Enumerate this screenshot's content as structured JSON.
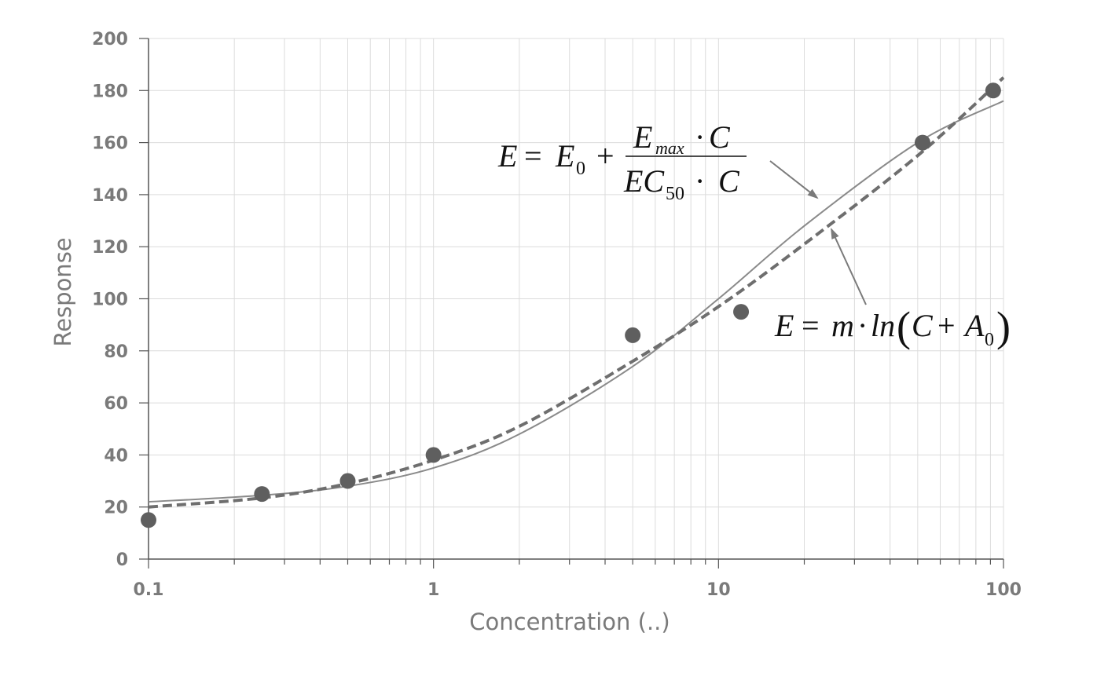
{
  "chart_data": {
    "type": "scatter",
    "title": "",
    "xlabel": "Concentration (..)",
    "ylabel": "Response",
    "xscale": "log",
    "xlim": [
      0.1,
      100
    ],
    "ylim": [
      0,
      200
    ],
    "grid": true,
    "x_ticks": [
      "0.1",
      "1",
      "10",
      "100"
    ],
    "y_ticks": [
      "0",
      "20",
      "40",
      "60",
      "80",
      "100",
      "120",
      "140",
      "160",
      "180",
      "200"
    ],
    "points": {
      "x": [
        0.1,
        0.25,
        0.5,
        1,
        5,
        12,
        52,
        92
      ],
      "y": [
        15,
        25,
        30,
        40,
        86,
        95,
        160,
        180
      ]
    },
    "curves": [
      {
        "style": "solid",
        "x": [
          0.1,
          0.25,
          0.5,
          1,
          2,
          5,
          10,
          20,
          50,
          100
        ],
        "y": [
          22,
          24.5,
          28,
          35,
          48,
          74,
          100,
          128,
          160,
          176
        ]
      },
      {
        "style": "dashed",
        "x": [
          0.1,
          0.25,
          0.5,
          1,
          2,
          5,
          10,
          20,
          50,
          100
        ],
        "y": [
          20,
          23.5,
          29,
          38,
          51,
          76,
          97,
          121,
          155,
          185
        ]
      }
    ],
    "annotations": {
      "emax_equation": {
        "E1": "E",
        "eq1": "=",
        "E0": "E",
        "sub0": "0",
        "plus": "+",
        "num_E": "E",
        "num_sub": "max",
        "num_dot": "·",
        "num_C": "C",
        "den_EC": "EC",
        "den_sub": "50",
        "den_dot": "·",
        "den_C": "C"
      },
      "log_equation": {
        "E": "E",
        "eq": "=",
        "m": "m",
        "dot": "·",
        "ln": "ln",
        "lparen": "(",
        "C": "C",
        "plus": "+",
        "A": "A",
        "sub0": "0",
        "rparen": ")"
      }
    }
  },
  "colors": {
    "grid": "#dcdcdc",
    "axis": "#555555",
    "points": "#5f5f5f",
    "solid_curve": "#8a8a8a",
    "dashed_curve": "#6e6e6e",
    "arrow": "#7a7a7a"
  }
}
